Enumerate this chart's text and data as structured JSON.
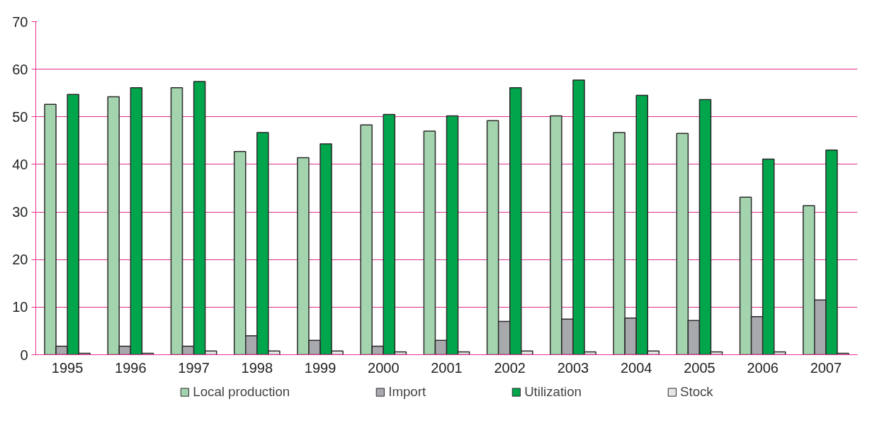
{
  "chart_data": {
    "type": "bar",
    "categories": [
      "1995",
      "1996",
      "1997",
      "1998",
      "1999",
      "2000",
      "2001",
      "2002",
      "2003",
      "2004",
      "2005",
      "2006",
      "2007"
    ],
    "series": [
      {
        "name": "Local production",
        "color": "#a3d4ad",
        "values": [
          52.6,
          54.2,
          56.1,
          42.7,
          41.4,
          48.3,
          47.0,
          49.2,
          50.2,
          46.7,
          46.5,
          33.1,
          31.3
        ]
      },
      {
        "name": "Import",
        "color": "#a8a9ad",
        "values": [
          1.8,
          1.8,
          1.8,
          4.0,
          3.0,
          1.8,
          3.0,
          7.0,
          7.5,
          7.7,
          7.2,
          8.0,
          11.5
        ]
      },
      {
        "name": "Utilization",
        "color": "#00a54c",
        "values": [
          54.7,
          56.1,
          57.4,
          46.7,
          44.3,
          50.5,
          50.2,
          56.1,
          57.7,
          54.5,
          53.6,
          41.1,
          43.0
        ]
      },
      {
        "name": "Stock",
        "color": "#e6e6e6",
        "values": [
          0.3,
          0.3,
          0.8,
          0.8,
          0.8,
          0.6,
          0.6,
          0.8,
          0.6,
          0.8,
          0.6,
          0.6,
          0.3
        ]
      }
    ],
    "ylim": [
      0,
      70
    ],
    "yticks": [
      0,
      10,
      20,
      30,
      40,
      50,
      60,
      70
    ],
    "grid": "y",
    "legend": "bottom"
  }
}
